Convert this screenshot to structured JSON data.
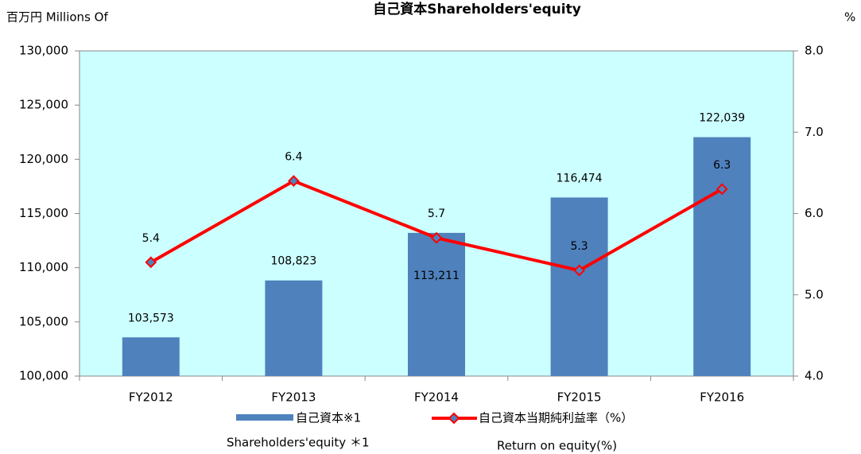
{
  "chart_data": {
    "type": "bar_line",
    "title": "自己資本Shareholders'equity",
    "y_axis_label": "百万円  Millions Of",
    "y2_axis_label": "%",
    "categories": [
      "FY2012",
      "FY2013",
      "FY2014",
      "FY2015",
      "FY2016"
    ],
    "series": [
      {
        "name": "自己資本※1",
        "name_en": "Shareholders'equity ＊1",
        "type": "bar",
        "color": "#4f81bd",
        "values": [
          103573,
          108823,
          113211,
          116474,
          122039
        ],
        "value_labels": [
          "103,573",
          "108,823",
          "113,211",
          "116,474",
          "122,039"
        ]
      },
      {
        "name": "自己資本当期純利益率（%）",
        "name_en": "Return on equity(%)",
        "type": "line",
        "axis": "y2",
        "color": "#ff0000",
        "marker_color": "#4f81bd",
        "values": [
          5.4,
          6.4,
          5.7,
          5.3,
          6.3
        ]
      }
    ],
    "ylim": [
      100000,
      130000
    ],
    "yticks": [
      {
        "value": 100000,
        "label": "100,000"
      },
      {
        "value": 105000,
        "label": "105,000"
      },
      {
        "value": 110000,
        "label": "110,000"
      },
      {
        "value": 115000,
        "label": "115,000"
      },
      {
        "value": 120000,
        "label": "120,000"
      },
      {
        "value": 125000,
        "label": "125,000"
      },
      {
        "value": 130000,
        "label": "130,000"
      }
    ],
    "y2lim": [
      4,
      8
    ],
    "y2ticks": [
      {
        "value": 4,
        "label": "4.0"
      },
      {
        "value": 5,
        "label": "5.0"
      },
      {
        "value": 6,
        "label": "6.0"
      },
      {
        "value": 7,
        "label": "7.0"
      },
      {
        "value": 8,
        "label": "8.0"
      }
    ],
    "plot_background": "#ccffff",
    "grid": false,
    "legend": "bottom"
  }
}
